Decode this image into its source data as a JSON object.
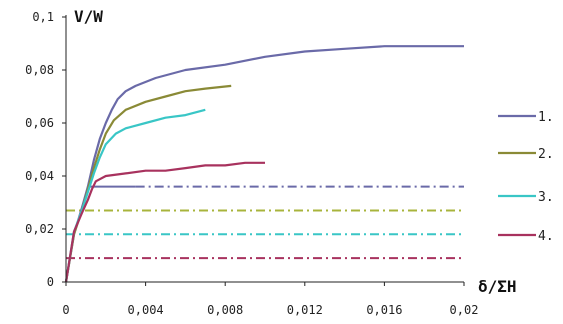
{
  "chart_data": {
    "type": "line",
    "xlabel": "δ/ΣH",
    "ylabel": "V/W",
    "xlim": [
      0,
      0.02
    ],
    "ylim": [
      0,
      0.1
    ],
    "x_ticks": [
      "0",
      "0,004",
      "0,008",
      "0,012",
      "0,016",
      "0,02"
    ],
    "y_ticks": [
      "0",
      "0,02",
      "0,04",
      "0,06",
      "0,08",
      "0,1"
    ],
    "grid": false,
    "legend_position": "right",
    "series": [
      {
        "name": "1.",
        "color": "#6a6aa8",
        "points": [
          [
            0,
            0
          ],
          [
            0.0004,
            0.018
          ],
          [
            0.0008,
            0.028
          ],
          [
            0.0011,
            0.036
          ],
          [
            0.0014,
            0.046
          ],
          [
            0.0017,
            0.054
          ],
          [
            0.002,
            0.06
          ],
          [
            0.0023,
            0.065
          ],
          [
            0.0026,
            0.069
          ],
          [
            0.003,
            0.072
          ],
          [
            0.0035,
            0.074
          ],
          [
            0.0045,
            0.077
          ],
          [
            0.006,
            0.08
          ],
          [
            0.008,
            0.082
          ],
          [
            0.01,
            0.085
          ],
          [
            0.012,
            0.087
          ],
          [
            0.014,
            0.088
          ],
          [
            0.016,
            0.089
          ],
          [
            0.018,
            0.089
          ],
          [
            0.02,
            0.089
          ]
        ]
      },
      {
        "name": "2.",
        "color": "#8a8a36",
        "points": [
          [
            0,
            0
          ],
          [
            0.0004,
            0.018
          ],
          [
            0.0008,
            0.027
          ],
          [
            0.0011,
            0.035
          ],
          [
            0.0014,
            0.043
          ],
          [
            0.0017,
            0.05
          ],
          [
            0.002,
            0.056
          ],
          [
            0.0024,
            0.061
          ],
          [
            0.003,
            0.065
          ],
          [
            0.004,
            0.068
          ],
          [
            0.005,
            0.07
          ],
          [
            0.006,
            0.072
          ],
          [
            0.007,
            0.073
          ],
          [
            0.0083,
            0.074
          ]
        ]
      },
      {
        "name": "3.",
        "color": "#39c6c6",
        "points": [
          [
            0,
            0
          ],
          [
            0.0004,
            0.019
          ],
          [
            0.0008,
            0.027
          ],
          [
            0.0011,
            0.034
          ],
          [
            0.0014,
            0.041
          ],
          [
            0.0017,
            0.047
          ],
          [
            0.002,
            0.052
          ],
          [
            0.0025,
            0.056
          ],
          [
            0.003,
            0.058
          ],
          [
            0.004,
            0.06
          ],
          [
            0.005,
            0.062
          ],
          [
            0.006,
            0.063
          ],
          [
            0.007,
            0.065
          ]
        ]
      },
      {
        "name": "4.",
        "color": "#a8325e",
        "points": [
          [
            0,
            0
          ],
          [
            0.0004,
            0.019
          ],
          [
            0.0008,
            0.026
          ],
          [
            0.0011,
            0.031
          ],
          [
            0.0013,
            0.035
          ],
          [
            0.0015,
            0.038
          ],
          [
            0.002,
            0.04
          ],
          [
            0.003,
            0.041
          ],
          [
            0.004,
            0.042
          ],
          [
            0.005,
            0.042
          ],
          [
            0.006,
            0.043
          ],
          [
            0.007,
            0.044
          ],
          [
            0.008,
            0.044
          ],
          [
            0.009,
            0.045
          ],
          [
            0.01,
            0.045
          ]
        ]
      }
    ],
    "reference_lines": [
      {
        "y": 0.036,
        "color": "#6a6aa8",
        "solid_to": 0.0035
      },
      {
        "y": 0.027,
        "color": "#a8b43c",
        "solid_to": 0
      },
      {
        "y": 0.018,
        "color": "#39c6c6",
        "solid_to": 0
      },
      {
        "y": 0.009,
        "color": "#a8325e",
        "solid_to": 0
      }
    ]
  }
}
